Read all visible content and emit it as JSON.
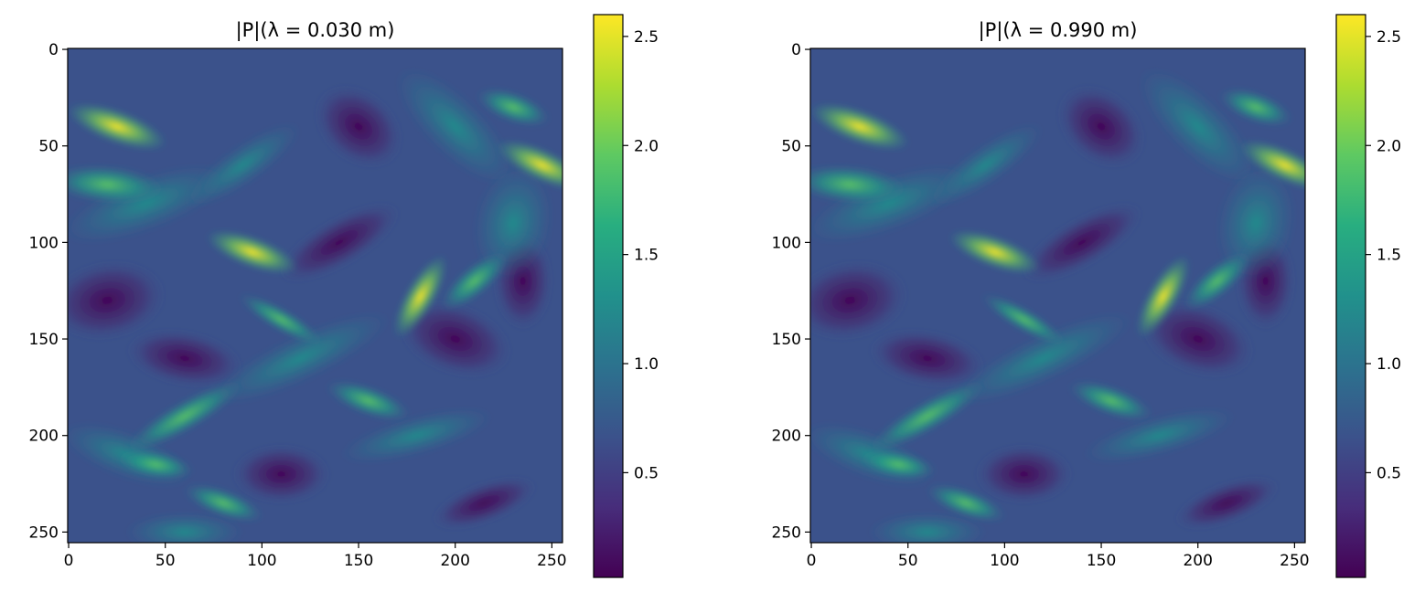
{
  "chart_data": [
    {
      "type": "heatmap",
      "title": "|P|(λ = 0.030 m)",
      "xlabel": "",
      "ylabel": "",
      "x_range": [
        0,
        255
      ],
      "y_range": [
        0,
        255
      ],
      "y_inverted": true,
      "xticks": [
        0,
        50,
        100,
        150,
        200,
        250
      ],
      "yticks": [
        0,
        50,
        100,
        150,
        200,
        250
      ],
      "colormap": "viridis",
      "colorbar": {
        "min": 0.02,
        "max": 2.6,
        "ticks": [
          0.5,
          1.0,
          1.5,
          2.0,
          2.5
        ]
      },
      "bright_features": [
        {
          "x": 25,
          "y": 40,
          "value": 2.5
        },
        {
          "x": 245,
          "y": 60,
          "value": 2.3
        },
        {
          "x": 95,
          "y": 105,
          "value": 2.2
        },
        {
          "x": 182,
          "y": 128,
          "value": 2.1
        },
        {
          "x": 155,
          "y": 182,
          "value": 1.9
        },
        {
          "x": 80,
          "y": 235,
          "value": 1.7
        }
      ],
      "grid": false
    },
    {
      "type": "heatmap",
      "title": "|P|(λ = 0.990 m)",
      "xlabel": "",
      "ylabel": "",
      "x_range": [
        0,
        255
      ],
      "y_range": [
        0,
        255
      ],
      "y_inverted": true,
      "xticks": [
        0,
        50,
        100,
        150,
        200,
        250
      ],
      "yticks": [
        0,
        50,
        100,
        150,
        200,
        250
      ],
      "colormap": "viridis",
      "colorbar": {
        "min": 0.02,
        "max": 2.6,
        "ticks": [
          0.5,
          1.0,
          1.5,
          2.0,
          2.5
        ]
      },
      "bright_features": [
        {
          "x": 25,
          "y": 40,
          "value": 2.5
        },
        {
          "x": 245,
          "y": 60,
          "value": 2.3
        },
        {
          "x": 95,
          "y": 105,
          "value": 2.2
        },
        {
          "x": 182,
          "y": 128,
          "value": 2.1
        },
        {
          "x": 155,
          "y": 182,
          "value": 1.9
        },
        {
          "x": 80,
          "y": 235,
          "value": 1.7
        }
      ],
      "grid": false
    }
  ]
}
